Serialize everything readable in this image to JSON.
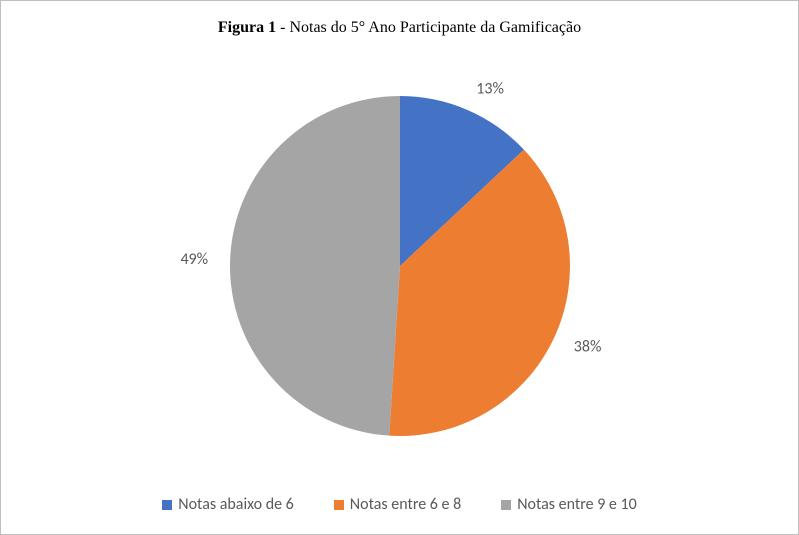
{
  "chart": {
    "type": "pie",
    "title_prefix_bold": "Figura 1",
    "title_rest": " - Notas do 5° Ano Participante da Gamificação",
    "title_fontsize": 16,
    "title_font": "Times New Roman",
    "title_color": "#000000",
    "background_color": "#ffffff",
    "border_color": "#bfbfbf",
    "label_color": "#595959",
    "label_fontsize": 16,
    "legend_font": "Calibri",
    "pie_radius": 170,
    "start_angle_deg": 0,
    "slices": [
      {
        "label": "Notas abaixo de 6",
        "value": 13,
        "percent_label": "13%",
        "color": "#4472c4"
      },
      {
        "label": "Notas entre 6 e 8",
        "value": 38,
        "percent_label": "38%",
        "color": "#ed7d31"
      },
      {
        "label": "Notas entre 9 e 10",
        "value": 49,
        "percent_label": "49%",
        "color": "#a5a5a5"
      }
    ]
  }
}
